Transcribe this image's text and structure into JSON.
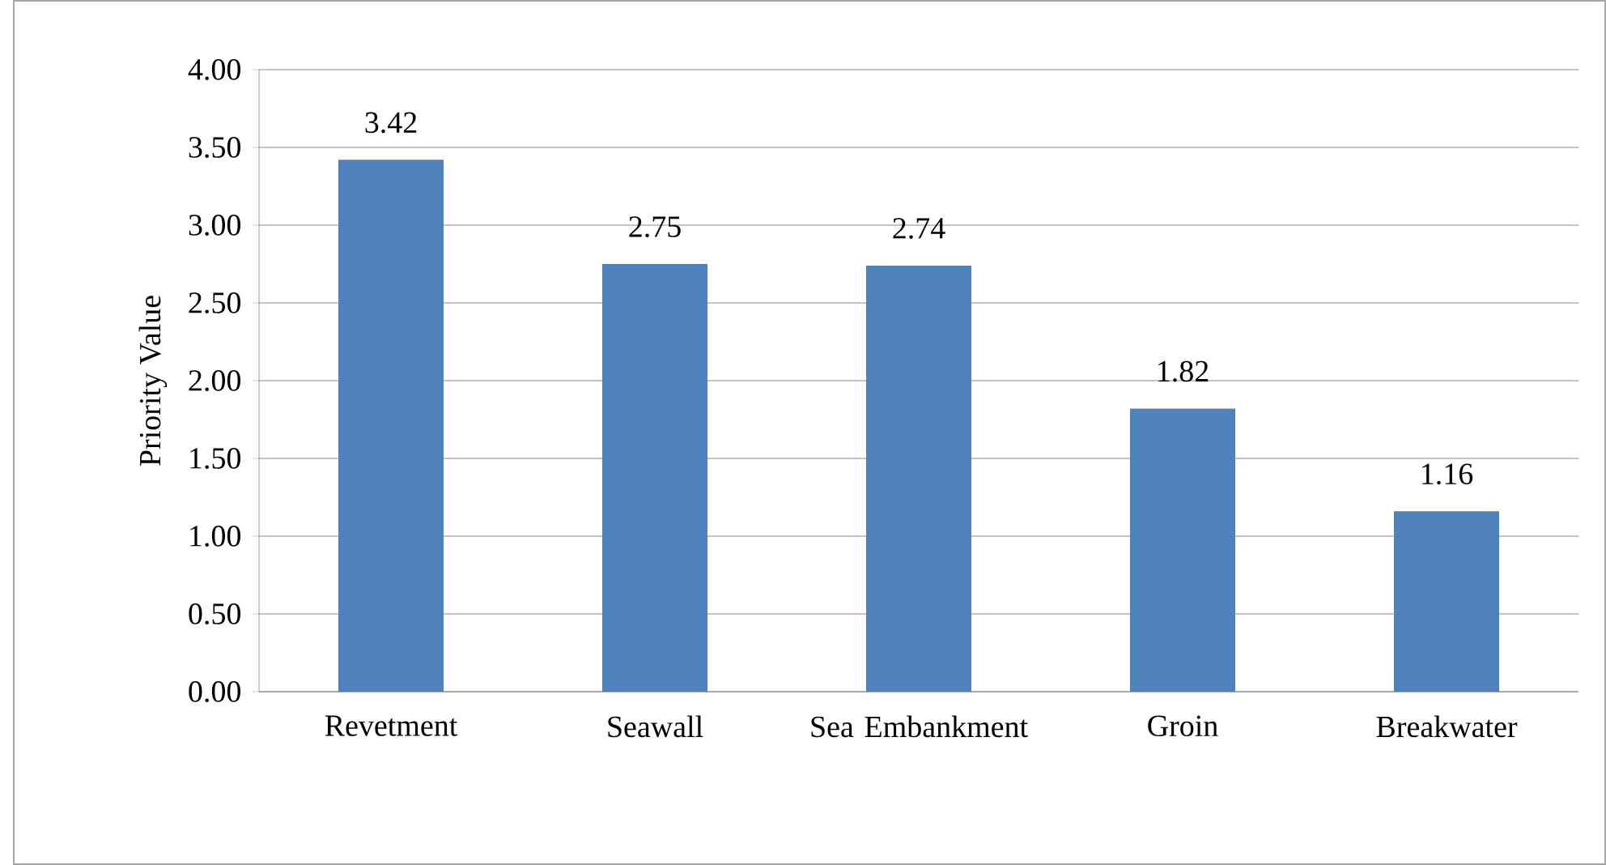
{
  "chart_data": {
    "type": "bar",
    "ylabel": "Priority Value",
    "categories": [
      "Revetment",
      "Seawall",
      "Sea Embankment",
      "Groin",
      "Breakwater"
    ],
    "values": [
      3.42,
      2.75,
      2.74,
      1.82,
      1.16
    ],
    "color": "#4f81bd",
    "ylim": [
      0,
      4
    ],
    "yticks": [
      {
        "value": 0,
        "label": "0.00"
      },
      {
        "value": 0.5,
        "label": "0.50"
      },
      {
        "value": 1,
        "label": "1.00"
      },
      {
        "value": 1.5,
        "label": "1.50"
      },
      {
        "value": 2,
        "label": "2.00"
      },
      {
        "value": 2.5,
        "label": "2.50"
      },
      {
        "value": 3,
        "label": "3.00"
      },
      {
        "value": 3.5,
        "label": "3.50"
      },
      {
        "value": 4,
        "label": "4.00"
      }
    ],
    "grid": "y",
    "data_labels": true
  }
}
